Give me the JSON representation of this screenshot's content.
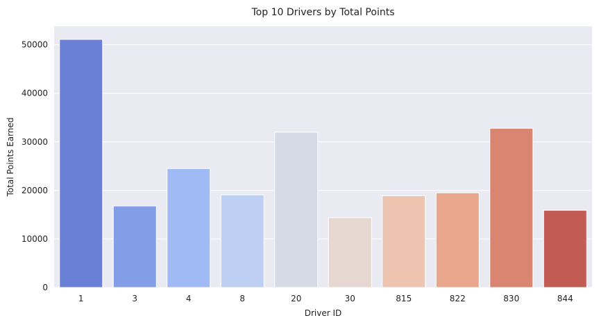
{
  "chart_data": {
    "type": "bar",
    "title": "Top 10 Drivers by Total Points",
    "xlabel": "Driver ID",
    "ylabel": "Total Points Earned",
    "categories": [
      "1",
      "3",
      "4",
      "8",
      "20",
      "30",
      "815",
      "822",
      "830",
      "844"
    ],
    "values": [
      51100,
      16800,
      24500,
      19100,
      32000,
      14400,
      18900,
      19500,
      32800,
      15900
    ],
    "colors": [
      "#6a7fd6",
      "#819ee7",
      "#a0baf5",
      "#bdcff2",
      "#d4dbe6",
      "#e6d8d0",
      "#ecc4b0",
      "#e8a78d",
      "#da8571",
      "#c25b53"
    ],
    "ylim": [
      0,
      53800
    ],
    "yticks": [
      0,
      10000,
      20000,
      30000,
      40000,
      50000
    ],
    "ytick_labels": [
      "0",
      "10000",
      "20000",
      "30000",
      "40000",
      "50000"
    ],
    "grid": true,
    "style": {
      "plot_background": "#eaeaf2",
      "grid_color": "#ffffff",
      "bar_edge_color": "#ffffff"
    }
  }
}
